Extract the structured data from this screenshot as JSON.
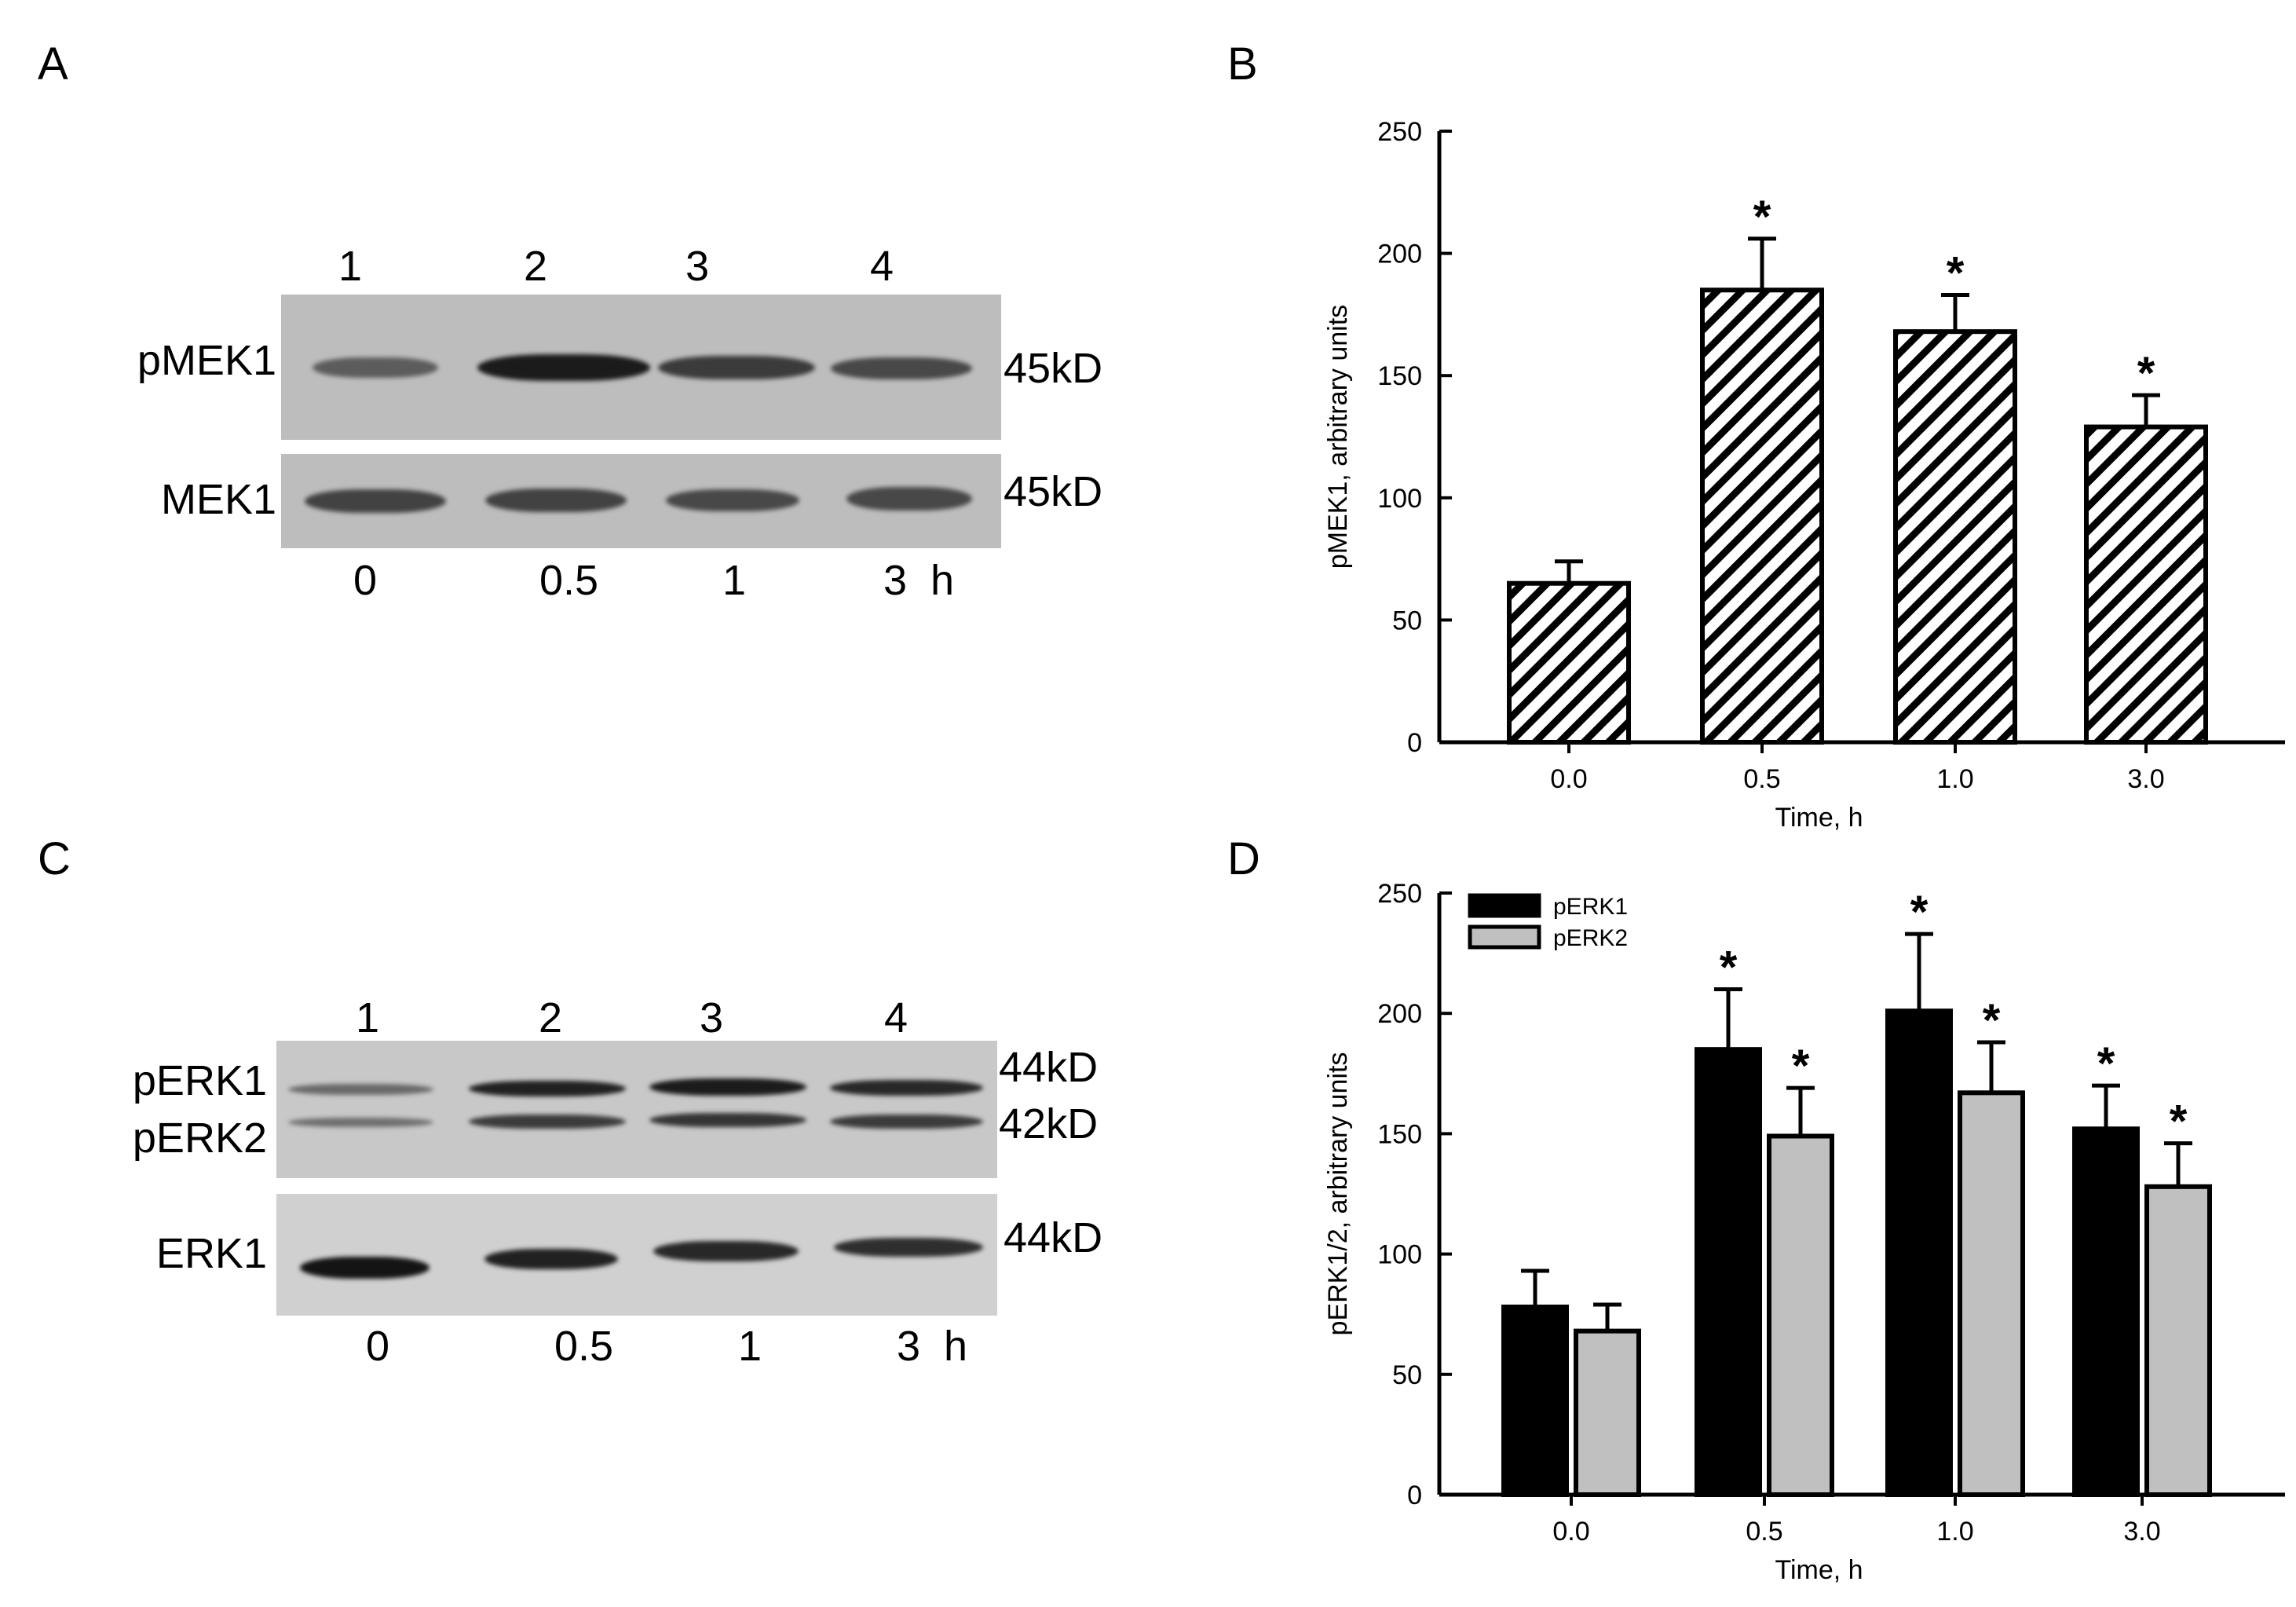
{
  "panels": {
    "A": {
      "letter": "A",
      "lanes": [
        "1",
        "2",
        "3",
        "4"
      ],
      "rows": [
        {
          "label": "pMEK1",
          "size": "45kD",
          "bands": [
            0.45,
            0.95,
            0.7,
            0.6
          ]
        },
        {
          "label": "MEK1",
          "size": "45kD",
          "bands": [
            0.65,
            0.65,
            0.6,
            0.6
          ]
        }
      ],
      "times": [
        "0",
        "0.5",
        "1",
        "3  h"
      ]
    },
    "C": {
      "letter": "C",
      "lanes": [
        "1",
        "2",
        "3",
        "4"
      ],
      "rows": [
        {
          "label": "pERK1",
          "size": "44kD",
          "bands": [
            0.35,
            0.9,
            0.95,
            0.85
          ]
        },
        {
          "label": "pERK2",
          "size": "42kD",
          "bands": [
            0.3,
            0.7,
            0.75,
            0.7
          ]
        },
        {
          "label": "ERK1",
          "size": "44kD",
          "bands": [
            1.0,
            0.9,
            0.85,
            0.8
          ]
        }
      ],
      "times": [
        "0",
        "0.5",
        "1",
        "3  h"
      ]
    },
    "B": {
      "letter": "B"
    },
    "D": {
      "letter": "D"
    }
  },
  "chart_data": [
    {
      "id": "B",
      "type": "bar",
      "categories": [
        "0.0",
        "0.5",
        "1.0",
        "3.0"
      ],
      "series": [
        {
          "name": "pMEK1",
          "values": [
            65,
            185,
            168,
            129
          ],
          "errors": [
            9,
            21,
            15,
            13
          ],
          "pattern": "hatched",
          "significant": [
            false,
            true,
            true,
            true
          ]
        }
      ],
      "xlabel": "Time, h",
      "ylabel": "pMEK1, arbitrary units",
      "ylim": [
        0,
        250
      ],
      "yticks": [
        0,
        50,
        100,
        150,
        200,
        250
      ],
      "significance_marker": "*",
      "legend": null
    },
    {
      "id": "D",
      "type": "bar",
      "categories": [
        "0.0",
        "0.5",
        "1.0",
        "3.0"
      ],
      "series": [
        {
          "name": "pERK1",
          "values": [
            78,
            185,
            201,
            152
          ],
          "errors": [
            15,
            25,
            32,
            18
          ],
          "color": "#000000",
          "significant": [
            false,
            true,
            true,
            true
          ]
        },
        {
          "name": "pERK2",
          "values": [
            68,
            149,
            167,
            128
          ],
          "errors": [
            11,
            20,
            21,
            18
          ],
          "color": "#c0c0c0",
          "significant": [
            false,
            true,
            true,
            true
          ]
        }
      ],
      "xlabel": "Time, h",
      "ylabel": "pERK1/2, arbitrary units",
      "ylim": [
        0,
        250
      ],
      "yticks": [
        0,
        50,
        100,
        150,
        200,
        250
      ],
      "significance_marker": "*",
      "legend": "top-left"
    }
  ]
}
